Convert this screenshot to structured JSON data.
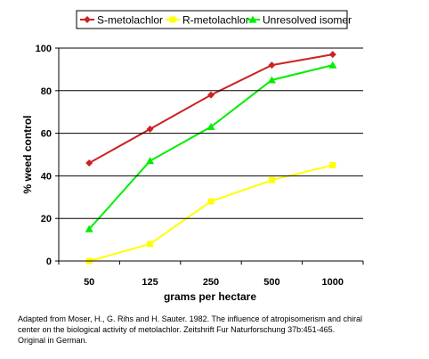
{
  "chart_data": {
    "type": "line",
    "categories": [
      "50",
      "125",
      "250",
      "500",
      "1000"
    ],
    "series": [
      {
        "name": "S-metolachlor",
        "values": [
          46,
          62,
          78,
          92,
          97
        ],
        "color": "#cc2222",
        "marker": "diamond"
      },
      {
        "name": "R-metolachlor",
        "values": [
          0,
          8,
          28,
          38,
          45
        ],
        "color": "#ffff00",
        "marker": "square"
      },
      {
        "name": "Unresolved isomer",
        "values": [
          15,
          47,
          63,
          85,
          92
        ],
        "color": "#00ee00",
        "marker": "triangle"
      }
    ],
    "xlabel": "grams per hectare",
    "ylabel": "% weed control",
    "ylim": [
      0,
      100
    ],
    "yticks": [
      0,
      20,
      40,
      60,
      80,
      100
    ],
    "grid": "horizontal",
    "legend": "top"
  },
  "caption": {
    "line1": "Adapted from  Moser, H., G. Rihs and H. Sauter.  1982.  The influence of atropisomerism and chiral",
    "line2": "center on the biological activity of metolachlor.  Zeitshrift Fur Naturforschung 37b:451-465.",
    "line3": "Original in German."
  }
}
